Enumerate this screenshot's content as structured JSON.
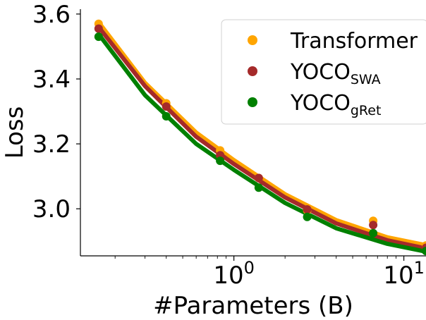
{
  "chart_data": {
    "type": "scatter",
    "xlabel": "#Parameters (B)",
    "ylabel": "Loss",
    "x_scale": "log",
    "xlim": [
      0.125,
      13.5
    ],
    "ylim": [
      2.855,
      3.615
    ],
    "y_ticks": [
      3.0,
      3.2,
      3.4,
      3.6
    ],
    "y_tick_labels": [
      "3.0",
      "3.2",
      "3.4",
      "3.6"
    ],
    "x_ticks": [
      {
        "value": 1,
        "base": "10",
        "exp": "0"
      },
      {
        "value": 10,
        "base": "10",
        "exp": "1"
      }
    ],
    "grid": false,
    "legend_position": "top-right",
    "series": [
      {
        "name": "Transformer",
        "color": "#ffa500",
        "points": [
          {
            "x": 0.16,
            "y": 3.57
          },
          {
            "x": 0.4,
            "y": 3.325
          },
          {
            "x": 0.83,
            "y": 3.18
          },
          {
            "x": 1.4,
            "y": 3.095
          },
          {
            "x": 2.7,
            "y": 2.995
          },
          {
            "x": 6.6,
            "y": 2.963
          },
          {
            "x": 13.5,
            "y": 2.887
          }
        ],
        "fit": [
          {
            "x": 0.16,
            "y": 3.575
          },
          {
            "x": 0.3,
            "y": 3.388
          },
          {
            "x": 0.6,
            "y": 3.235
          },
          {
            "x": 1.0,
            "y": 3.15
          },
          {
            "x": 2.0,
            "y": 3.045
          },
          {
            "x": 4.0,
            "y": 2.965
          },
          {
            "x": 8.0,
            "y": 2.912
          },
          {
            "x": 13.5,
            "y": 2.888
          }
        ]
      },
      {
        "name": "YOCO",
        "subscript": "SWA",
        "color": "#a52a2a",
        "points": [
          {
            "x": 0.16,
            "y": 3.555
          },
          {
            "x": 0.4,
            "y": 3.315
          },
          {
            "x": 0.83,
            "y": 3.165
          },
          {
            "x": 1.4,
            "y": 3.095
          },
          {
            "x": 2.7,
            "y": 2.998
          },
          {
            "x": 6.6,
            "y": 2.95
          },
          {
            "x": 13.5,
            "y": 2.88
          }
        ],
        "fit": [
          {
            "x": 0.16,
            "y": 3.56
          },
          {
            "x": 0.3,
            "y": 3.378
          },
          {
            "x": 0.6,
            "y": 3.222
          },
          {
            "x": 1.0,
            "y": 3.138
          },
          {
            "x": 2.0,
            "y": 3.035
          },
          {
            "x": 4.0,
            "y": 2.955
          },
          {
            "x": 8.0,
            "y": 2.903
          },
          {
            "x": 13.5,
            "y": 2.878
          }
        ]
      },
      {
        "name": "YOCO",
        "subscript": "gRet",
        "color": "#008000",
        "points": [
          {
            "x": 0.16,
            "y": 3.53
          },
          {
            "x": 0.4,
            "y": 3.285
          },
          {
            "x": 0.83,
            "y": 3.148
          },
          {
            "x": 1.4,
            "y": 3.065
          },
          {
            "x": 2.7,
            "y": 2.975
          },
          {
            "x": 6.6,
            "y": 2.925
          },
          {
            "x": 13.5,
            "y": 2.87
          }
        ],
        "fit": [
          {
            "x": 0.16,
            "y": 3.538
          },
          {
            "x": 0.3,
            "y": 3.35
          },
          {
            "x": 0.6,
            "y": 3.2
          },
          {
            "x": 1.0,
            "y": 3.12
          },
          {
            "x": 2.0,
            "y": 3.018
          },
          {
            "x": 4.0,
            "y": 2.94
          },
          {
            "x": 8.0,
            "y": 2.892
          },
          {
            "x": 13.5,
            "y": 2.868
          }
        ]
      }
    ]
  }
}
